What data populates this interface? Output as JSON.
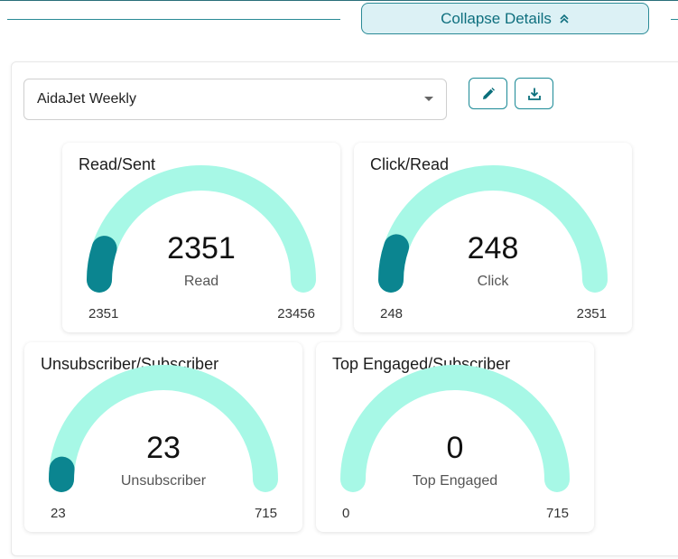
{
  "header": {
    "collapse_label": "Collapse Details",
    "collapse_icon": "chevrons-up-icon"
  },
  "filter": {
    "newsletter_value": "AidaJet Weekly",
    "edit_icon": "pencil-icon",
    "download_icon": "download-icon"
  },
  "colors": {
    "track": "#a7f8e6",
    "fill": "#0b8590",
    "accent": "#0e6f7e"
  },
  "gauges": [
    {
      "title": "Read/Sent",
      "value": "2351",
      "label": "Read",
      "min": "2351",
      "max": "23456",
      "fraction": 0.1
    },
    {
      "title": "Click/Read",
      "value": "248",
      "label": "Click",
      "min": "248",
      "max": "2351",
      "fraction": 0.105
    },
    {
      "title": "Unsubscriber/Subscriber",
      "value": "23",
      "label": "Unsubscriber",
      "min": "23",
      "max": "715",
      "fraction": 0.032
    },
    {
      "title": "Top Engaged/Subscriber",
      "value": "0",
      "label": "Top Engaged",
      "min": "0",
      "max": "715",
      "fraction": 0
    }
  ]
}
